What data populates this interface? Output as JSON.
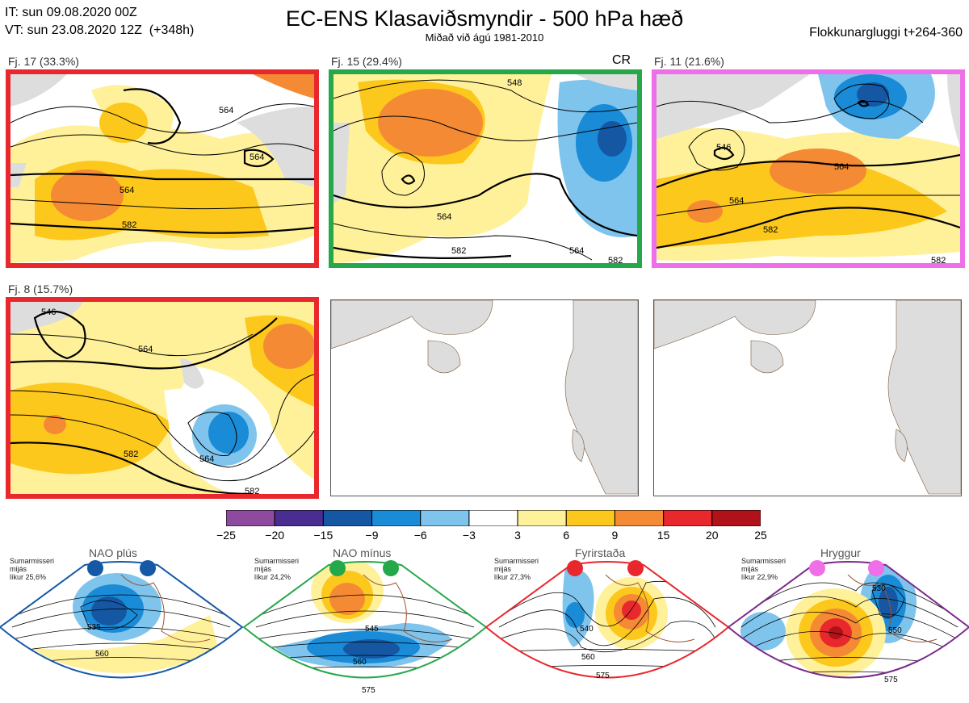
{
  "header": {
    "it": "IT: sun 09.08.2020 00Z",
    "vt": "VT: sun 23.08.2020 12Z  (+348h)",
    "title": "EC-ENS Klasaviðsmyndir - 500 hPa hæð",
    "subtitle": "Miðað við ágú 1981-2010",
    "window": "Flokkunargluggi t+264-360"
  },
  "panels": [
    {
      "label": "Fj. 17 (33.3%)",
      "frame": "#e8282d",
      "contours": [
        "564",
        "564",
        "564",
        "582"
      ]
    },
    {
      "label": "Fj. 15 (29.4%)",
      "frame": "#25a84a",
      "tag": "CR",
      "contours": [
        "548",
        "564",
        "582",
        "564",
        "582"
      ]
    },
    {
      "label": "Fj. 11 (21.6%)",
      "frame": "#ee6fe8",
      "contours": [
        "546",
        "564",
        "564",
        "582",
        "582"
      ]
    },
    {
      "label": "Fj. 8 (15.7%)",
      "frame": "#e8282d",
      "contours": [
        "546",
        "564",
        "582",
        "564",
        "582"
      ]
    }
  ],
  "colorbar": {
    "ticks": [
      "−25",
      "−20",
      "−15",
      "−9",
      "−6",
      "−3",
      "3",
      "6",
      "9",
      "15",
      "20",
      "25"
    ],
    "colors": [
      "#8d4a9e",
      "#4a2d91",
      "#1557a3",
      "#1a8bd6",
      "#7fc4ec",
      "#ffffff",
      "#fff19a",
      "#fdc81c",
      "#f58a35",
      "#e8282d",
      "#b1121a"
    ]
  },
  "regimes": [
    {
      "name": "NAO plús",
      "note": "Sumarmisseri\nmijás\nlíkur 25,6%",
      "color": "#1558a6",
      "contours": [
        "535",
        "560"
      ]
    },
    {
      "name": "NAO mínus",
      "note": "Sumarmisseri\nmijás\nlíkur 24,2%",
      "color": "#25a84a",
      "contours": [
        "545",
        "560",
        "575"
      ]
    },
    {
      "name": "Fyrirstaða",
      "note": "Sumarmisseri\nmijás\nlíkur 27,3%",
      "color": "#e8282d",
      "contours": [
        "540",
        "560",
        "575"
      ]
    },
    {
      "name": "Hryggur",
      "note": "Sumarmisseri\nmijás\nlíkur 22,9%",
      "color": "#ee6fe8",
      "contours": [
        "530",
        "550",
        "575"
      ]
    }
  ]
}
